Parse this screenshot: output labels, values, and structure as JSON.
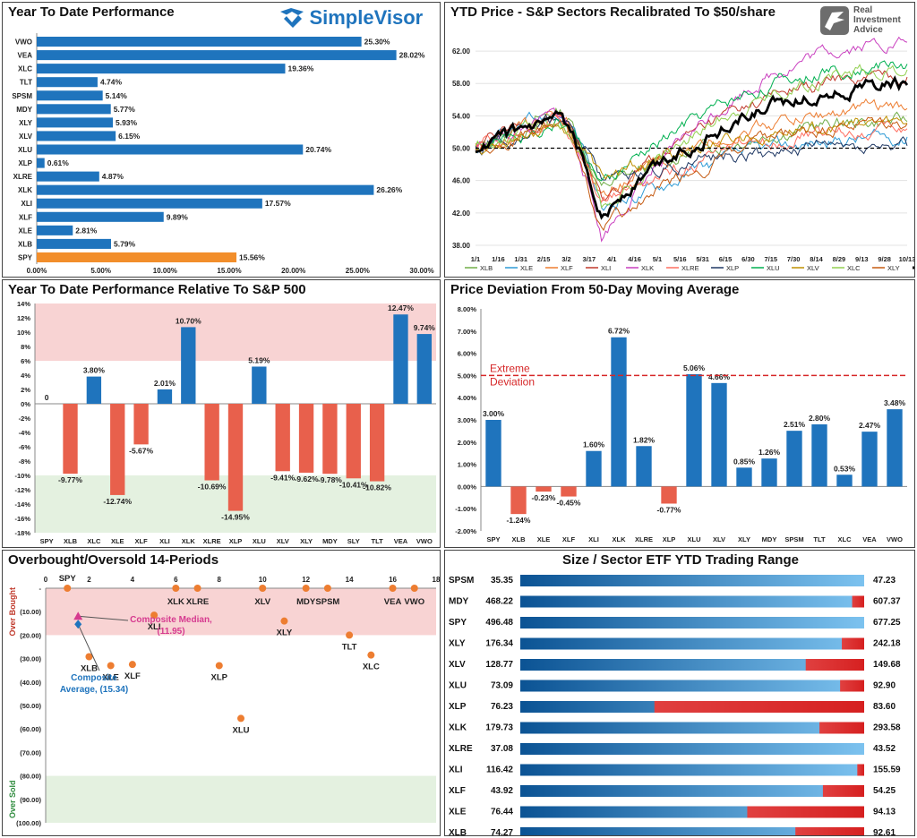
{
  "panels": {
    "ytd": {
      "title": "Year To Date Performance",
      "logo": "SimpleVisor"
    },
    "price": {
      "title": "YTD Price - S&P Sectors Recalibrated To $50/share",
      "logo": [
        "Real",
        "Investment",
        "Advice"
      ]
    },
    "rel": {
      "title": "Year To Date Performance Relative To S&P 500"
    },
    "dev": {
      "title": "Price Deviation From 50-Day Moving Average",
      "extreme": [
        "Extreme",
        "Deviation"
      ]
    },
    "ob": {
      "title": "Overbought/Oversold 14-Periods",
      "yl_over": "Over Bought",
      "yl_under": "Over Sold",
      "median": [
        "Composite Median,",
        "(11.95)"
      ],
      "average": [
        "Composite",
        "Average, (15.34)"
      ]
    },
    "range": {
      "title": "Size / Sector ETF YTD Trading Range"
    }
  },
  "chart_data": [
    {
      "id": "ytd",
      "type": "bar",
      "orientation": "horizontal",
      "title": "Year To Date Performance",
      "categories": [
        "VWO",
        "VEA",
        "XLC",
        "TLT",
        "SPSM",
        "MDY",
        "XLY",
        "XLV",
        "XLU",
        "XLP",
        "XLRE",
        "XLK",
        "XLI",
        "XLF",
        "XLE",
        "XLB",
        "SPY"
      ],
      "values": [
        25.3,
        28.02,
        19.36,
        4.74,
        5.14,
        5.77,
        5.93,
        6.15,
        20.74,
        0.61,
        4.87,
        26.26,
        17.57,
        9.89,
        2.81,
        5.79,
        15.56
      ],
      "labels": [
        "25.30%",
        "28.02%",
        "19.36%",
        "4.74%",
        "5.14%",
        "5.77%",
        "5.93%",
        "6.15%",
        "20.74%",
        "0.61%",
        "4.87%",
        "26.26%",
        "17.57%",
        "9.89%",
        "2.81%",
        "5.79%",
        "15.56%"
      ],
      "xticks": [
        "0.00%",
        "5.00%",
        "10.00%",
        "15.00%",
        "20.00%",
        "25.00%",
        "30.00%"
      ],
      "xlim": [
        0,
        30
      ],
      "colors": {
        "bar": "#1f74bd",
        "highlight": "#f28e2b"
      }
    },
    {
      "id": "price",
      "type": "line",
      "title": "YTD Price - S&P Sectors Recalibrated To $50/share",
      "xticks": [
        "1/1",
        "1/16",
        "1/31",
        "2/15",
        "3/2",
        "3/17",
        "4/1",
        "4/16",
        "5/1",
        "5/16",
        "5/31",
        "6/15",
        "6/30",
        "7/15",
        "7/30",
        "8/14",
        "8/29",
        "9/13",
        "9/28",
        "10/13"
      ],
      "yticks": [
        "38.00",
        "42.00",
        "46.00",
        "50.00",
        "54.00",
        "58.00",
        "62.00"
      ],
      "ylim": [
        37,
        64
      ],
      "baseline": 50,
      "series": [
        {
          "name": "XLB",
          "color": "#70ad47",
          "end": 53.3,
          "dip": 45
        },
        {
          "name": "XLE",
          "color": "#2e9bd6",
          "end": 51.4,
          "dip": 42
        },
        {
          "name": "XLF",
          "color": "#ed7d31",
          "end": 54.9,
          "dip": 44
        },
        {
          "name": "XLI",
          "color": "#c0392b",
          "end": 58.8,
          "dip": 43
        },
        {
          "name": "XLK",
          "color": "#c93fbf",
          "end": 63.1,
          "dip": 39
        },
        {
          "name": "XLRE",
          "color": "#ff6f61",
          "end": 52.4,
          "dip": 43
        },
        {
          "name": "XLP",
          "color": "#1f3864",
          "end": 50.3,
          "dip": 46
        },
        {
          "name": "XLU",
          "color": "#00b050",
          "end": 60.4,
          "dip": 45
        },
        {
          "name": "XLV",
          "color": "#bf9000",
          "end": 53.1,
          "dip": 46
        },
        {
          "name": "XLC",
          "color": "#92d050",
          "end": 59.7,
          "dip": 42
        },
        {
          "name": "XLY",
          "color": "#c55a11",
          "end": 53.0,
          "dip": 40
        },
        {
          "name": "SPY",
          "color": "#000000",
          "end": 57.8,
          "dip": 42
        }
      ]
    },
    {
      "id": "rel",
      "type": "bar",
      "title": "Year To Date Performance Relative To S&P 500",
      "categories": [
        "SPY",
        "XLB",
        "XLC",
        "XLE",
        "XLF",
        "XLI",
        "XLK",
        "XLRE",
        "XLP",
        "XLU",
        "XLV",
        "XLY",
        "MDY",
        "SLY",
        "TLT",
        "VEA",
        "VWO"
      ],
      "values": [
        0,
        -9.77,
        3.8,
        -12.74,
        -5.67,
        2.01,
        10.7,
        -10.69,
        -14.95,
        5.19,
        -9.41,
        -9.62,
        -9.78,
        -10.41,
        -10.82,
        12.47,
        9.74
      ],
      "labels": [
        "0",
        "-9.77%",
        "3.80%",
        "-12.74%",
        "-5.67%",
        "2.01%",
        "10.70%",
        "-10.69%",
        "-14.95%",
        "5.19%",
        "-9.41%",
        "-9.62%",
        "-9.78%",
        "-10.41%",
        "-10.82%",
        "12.47%",
        "9.74%"
      ],
      "yticks": [
        "14%",
        "12%",
        "10%",
        "8%",
        "6%",
        "4%",
        "2%",
        "0%",
        "-2%",
        "-4%",
        "-6%",
        "-8%",
        "-10%",
        "-12%",
        "-14%",
        "-16%",
        "-18%"
      ],
      "ylim": [
        -18,
        14
      ],
      "bands": {
        "upper": [
          6,
          14
        ],
        "lower": [
          -18,
          -10
        ]
      },
      "colors": {
        "pos": "#1f74bd",
        "neg": "#e8604c",
        "upper_band": "#f8d3d3",
        "lower_band": "#e4f1e0"
      }
    },
    {
      "id": "dev",
      "type": "bar",
      "title": "Price Deviation From 50-Day Moving Average",
      "categories": [
        "SPY",
        "XLB",
        "XLE",
        "XLF",
        "XLI",
        "XLK",
        "XLRE",
        "XLP",
        "XLU",
        "XLV",
        "XLY",
        "MDY",
        "SPSM",
        "TLT",
        "XLC",
        "VEA",
        "VWO"
      ],
      "values": [
        3.0,
        -1.24,
        -0.23,
        -0.45,
        1.6,
        6.72,
        1.82,
        -0.77,
        5.06,
        4.66,
        0.85,
        1.26,
        2.51,
        2.8,
        0.53,
        2.47,
        3.48
      ],
      "labels": [
        "3.00%",
        "-1.24%",
        "-0.23%",
        "-0.45%",
        "1.60%",
        "6.72%",
        "1.82%",
        "-0.77%",
        "5.06%",
        "4.66%",
        "0.85%",
        "1.26%",
        "2.51%",
        "2.80%",
        "0.53%",
        "2.47%",
        "3.48%"
      ],
      "yticks": [
        "8.00%",
        "7.00%",
        "6.00%",
        "5.00%",
        "4.00%",
        "3.00%",
        "2.00%",
        "1.00%",
        "0.00%",
        "-1.00%",
        "-2.00%"
      ],
      "ylim": [
        -2,
        8
      ],
      "threshold": 5,
      "colors": {
        "pos": "#1f74bd",
        "neg": "#e8604c",
        "threshold": "#d62728"
      }
    },
    {
      "id": "ob",
      "type": "scatter",
      "title": "Overbought/Oversold 14-Periods",
      "xticks": [
        "0",
        "2",
        "4",
        "6",
        "8",
        "10",
        "12",
        "14",
        "16",
        "18"
      ],
      "xlim": [
        0,
        18
      ],
      "yticks": [
        "-",
        "(10.00)",
        "(20.00)",
        "(30.00)",
        "(40.00)",
        "(50.00)",
        "(60.00)",
        "(70.00)",
        "(80.00)",
        "(90.00)",
        "(100.00)"
      ],
      "ylim": [
        0,
        -100
      ],
      "points": [
        {
          "label": "SPY",
          "x": 1,
          "y": 0
        },
        {
          "label": "XLB",
          "x": 2,
          "y": -29.2
        },
        {
          "label": "XLE",
          "x": 3,
          "y": -33
        },
        {
          "label": "XLF",
          "x": 4,
          "y": -32.5
        },
        {
          "label": "XLI",
          "x": 5,
          "y": -11.5
        },
        {
          "label": "XLK",
          "x": 6,
          "y": 0
        },
        {
          "label": "XLRE",
          "x": 7,
          "y": 0
        },
        {
          "label": "XLP",
          "x": 8,
          "y": -33
        },
        {
          "label": "XLU",
          "x": 9,
          "y": -55.5
        },
        {
          "label": "XLV",
          "x": 10,
          "y": 0
        },
        {
          "label": "XLY",
          "x": 11,
          "y": -14
        },
        {
          "label": "MDY",
          "x": 12,
          "y": 0
        },
        {
          "label": "SPSM",
          "x": 13,
          "y": 0
        },
        {
          "label": "TLT",
          "x": 14,
          "y": -20
        },
        {
          "label": "XLC",
          "x": 15,
          "y": -28.5
        },
        {
          "label": "VEA",
          "x": 16,
          "y": 0
        },
        {
          "label": "VWO",
          "x": 17,
          "y": 0
        }
      ],
      "median": {
        "x": 1,
        "y": -11.95
      },
      "average": {
        "x": 1,
        "y": -15.34
      },
      "bands": {
        "over": [
          0,
          -20
        ],
        "under": [
          -80,
          -100
        ]
      },
      "colors": {
        "point": "#ed7d31",
        "median": "#d63a8f",
        "average": "#1f74bd",
        "over_band": "#f8d3d3",
        "under_band": "#e4f1e0"
      }
    },
    {
      "id": "range",
      "type": "table",
      "title": "Size / Sector ETF YTD Trading Range",
      "rows": [
        {
          "ticker": "SPSM",
          "low": "35.35",
          "high": "47.23",
          "pos": 1.0
        },
        {
          "ticker": "MDY",
          "low": "468.22",
          "high": "607.37",
          "pos": 0.965
        },
        {
          "ticker": "SPY",
          "low": "496.48",
          "high": "677.25",
          "pos": 1.0
        },
        {
          "ticker": "XLY",
          "low": "176.34",
          "high": "242.18",
          "pos": 0.935
        },
        {
          "ticker": "XLV",
          "low": "128.77",
          "high": "149.68",
          "pos": 0.83
        },
        {
          "ticker": "XLU",
          "low": "73.09",
          "high": "92.90",
          "pos": 0.93
        },
        {
          "ticker": "XLP",
          "low": "76.23",
          "high": "83.60",
          "pos": 0.39
        },
        {
          "ticker": "XLK",
          "low": "179.73",
          "high": "293.58",
          "pos": 0.87
        },
        {
          "ticker": "XLRE",
          "low": "37.08",
          "high": "43.52",
          "pos": 1.0
        },
        {
          "ticker": "XLI",
          "low": "116.42",
          "high": "155.59",
          "pos": 0.98
        },
        {
          "ticker": "XLF",
          "low": "43.92",
          "high": "54.25",
          "pos": 0.88
        },
        {
          "ticker": "XLE",
          "low": "76.44",
          "high": "94.13",
          "pos": 0.66
        },
        {
          "ticker": "XLB",
          "low": "74.27",
          "high": "92.61",
          "pos": 0.8
        }
      ],
      "colors": {
        "dark": "#0b5394",
        "light": "#7cc2ef",
        "red": "#d62020"
      }
    }
  ]
}
